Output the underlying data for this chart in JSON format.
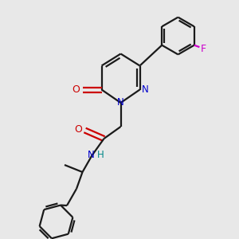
{
  "bg_color": "#e8e8e8",
  "line_color": "#1a1a1a",
  "N_color": "#0000cc",
  "O_color": "#cc0000",
  "F_color": "#cc00cc",
  "NH_color": "#008888",
  "figsize": [
    3.0,
    3.0
  ],
  "dpi": 100,
  "xlim": [
    0,
    10
  ],
  "ylim": [
    0,
    10
  ]
}
